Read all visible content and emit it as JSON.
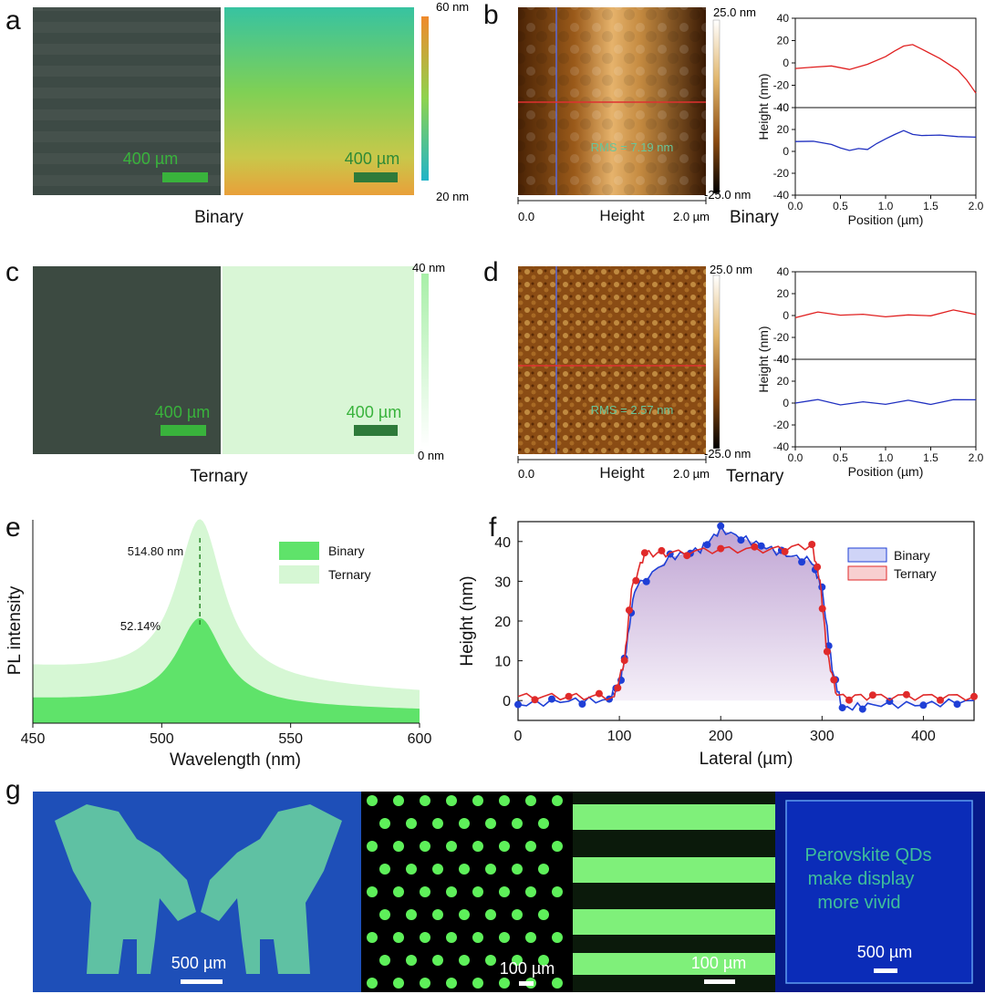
{
  "panels": {
    "a": {
      "letter": "a",
      "caption": "Binary",
      "scale_left": "400 µm",
      "scale_right": "400 µm",
      "colorbar_max": "60 nm",
      "colorbar_min": "20 nm",
      "colors": {
        "photo": "#3d4a45",
        "map_top": "#4cc79a",
        "map_bottom": "#e8a93a"
      }
    },
    "b": {
      "letter": "b",
      "caption": "Binary",
      "rms": "RMS = 7.19 nm",
      "colorbar_max": "25.0 nm",
      "colorbar_min": "-25.0 nm",
      "x_start": "0.0",
      "x_end": "2.0 µm",
      "x_label": "Height"
    },
    "c": {
      "letter": "c",
      "caption": "Ternary",
      "scale_left": "400 µm",
      "scale_right": "400 µm",
      "colorbar_max": "40 nm",
      "colorbar_min": "0 nm"
    },
    "d": {
      "letter": "d",
      "caption": "Ternary",
      "rms": "RMS = 2.57 nm",
      "colorbar_max": "25.0 nm",
      "colorbar_min": "-25.0 nm",
      "x_start": "0.0",
      "x_end": "2.0 µm",
      "x_label": "Height"
    },
    "e": {
      "letter": "e"
    },
    "f": {
      "letter": "f"
    },
    "g": {
      "letter": "g",
      "scale_1": "500 µm",
      "scale_2": "100 µm",
      "scale_3": "100 µm",
      "scale_4": "500 µm",
      "text_line1": "Perovskite QDs",
      "text_line2": "make display",
      "text_line3": "more vivid"
    }
  },
  "chart_data": [
    {
      "id": "b-profile",
      "type": "line",
      "xlabel": "Position (µm)",
      "ylabel": "Height (nm)",
      "xlim": [
        0,
        2.0
      ],
      "ylim": [
        -40,
        40
      ],
      "xticks": [
        "0.0",
        "0.5",
        "1.0",
        "1.5",
        "2.0"
      ],
      "yticks_top": [
        "40",
        "20",
        "0",
        "-20",
        "-40"
      ],
      "yticks_bottom": [
        "40",
        "20",
        "0",
        "-20",
        "-40"
      ],
      "series": [
        {
          "color": "#e02020",
          "x": [
            0,
            0.2,
            0.4,
            0.6,
            0.8,
            1.0,
            1.1,
            1.2,
            1.3,
            1.4,
            1.6,
            1.8,
            1.9,
            2.0
          ],
          "values": [
            -5,
            -5,
            -4,
            -6,
            0,
            7,
            11,
            14,
            15,
            12,
            5,
            -5,
            -15,
            -27
          ]
        },
        {
          "color": "#2030c0",
          "x": [
            0,
            0.2,
            0.4,
            0.5,
            0.6,
            0.7,
            0.8,
            0.9,
            1.0,
            1.1,
            1.2,
            1.3,
            1.4,
            1.6,
            1.8,
            2.0
          ],
          "values": [
            9,
            8,
            5,
            3,
            2,
            4,
            2,
            6,
            10,
            15,
            20,
            17,
            15,
            14,
            12,
            13
          ]
        }
      ]
    },
    {
      "id": "d-profile",
      "type": "line",
      "xlabel": "Position (µm)",
      "ylabel": "Height (nm)",
      "xlim": [
        0,
        2.0
      ],
      "ylim": [
        -40,
        40
      ],
      "xticks": [
        "0.0",
        "0.5",
        "1.0",
        "1.5",
        "2.0"
      ],
      "yticks_top": [
        "40",
        "20",
        "0",
        "-20",
        "-40"
      ],
      "yticks_bottom": [
        "40",
        "20",
        "0",
        "-20",
        "-40"
      ],
      "series": [
        {
          "color": "#e02020",
          "x": [
            0,
            0.25,
            0.5,
            0.75,
            1.0,
            1.25,
            1.5,
            1.75,
            2.0
          ],
          "values": [
            -2,
            2,
            -1,
            1,
            0,
            2,
            0,
            4,
            1
          ]
        },
        {
          "color": "#2030c0",
          "x": [
            0,
            0.25,
            0.5,
            0.75,
            1.0,
            1.25,
            1.5,
            1.75,
            2.0
          ],
          "values": [
            0,
            2,
            -3,
            1,
            0,
            4,
            -1,
            2,
            3
          ]
        }
      ]
    },
    {
      "id": "e-pl",
      "type": "area",
      "xlabel": "Wavelength (nm)",
      "ylabel": "PL intensity",
      "xlim": [
        450,
        600
      ],
      "xticks": [
        "450",
        "500",
        "550",
        "600"
      ],
      "annotation_peak": "514.80 nm",
      "annotation_ratio": "52.14%",
      "peak": 514.8,
      "series": [
        {
          "name": "Binary",
          "color": "#5fe36a",
          "peak_height": 0.52,
          "baseline": 0.12
        },
        {
          "name": "Ternary",
          "color": "#d6f7d4",
          "peak_height": 1.0,
          "baseline": 0.28
        }
      ]
    },
    {
      "id": "f-height",
      "type": "line",
      "xlabel": "Lateral (µm)",
      "ylabel": "Height (nm)",
      "xlim": [
        0,
        450
      ],
      "ylim": [
        -5,
        45
      ],
      "xticks": [
        "0",
        "100",
        "200",
        "300",
        "400"
      ],
      "yticks": [
        "0",
        "10",
        "20",
        "30",
        "40"
      ],
      "series": [
        {
          "name": "Binary",
          "color": "#1f3fd6",
          "x": [
            0,
            50,
            90,
            100,
            105,
            115,
            150,
            180,
            200,
            230,
            260,
            290,
            300,
            310,
            320,
            350,
            400,
            450
          ],
          "values": [
            -1,
            0,
            0,
            4,
            10,
            28,
            36,
            38,
            43,
            40,
            37,
            35,
            28,
            8,
            -2,
            -1,
            -1,
            0
          ]
        },
        {
          "name": "Ternary",
          "color": "#e02a2a",
          "x": [
            0,
            50,
            95,
            105,
            112,
            125,
            150,
            200,
            250,
            290,
            298,
            305,
            315,
            350,
            400,
            450
          ],
          "values": [
            1,
            1,
            1,
            10,
            28,
            37,
            37,
            38,
            38,
            39,
            30,
            12,
            1,
            1,
            1,
            1
          ]
        }
      ]
    }
  ]
}
